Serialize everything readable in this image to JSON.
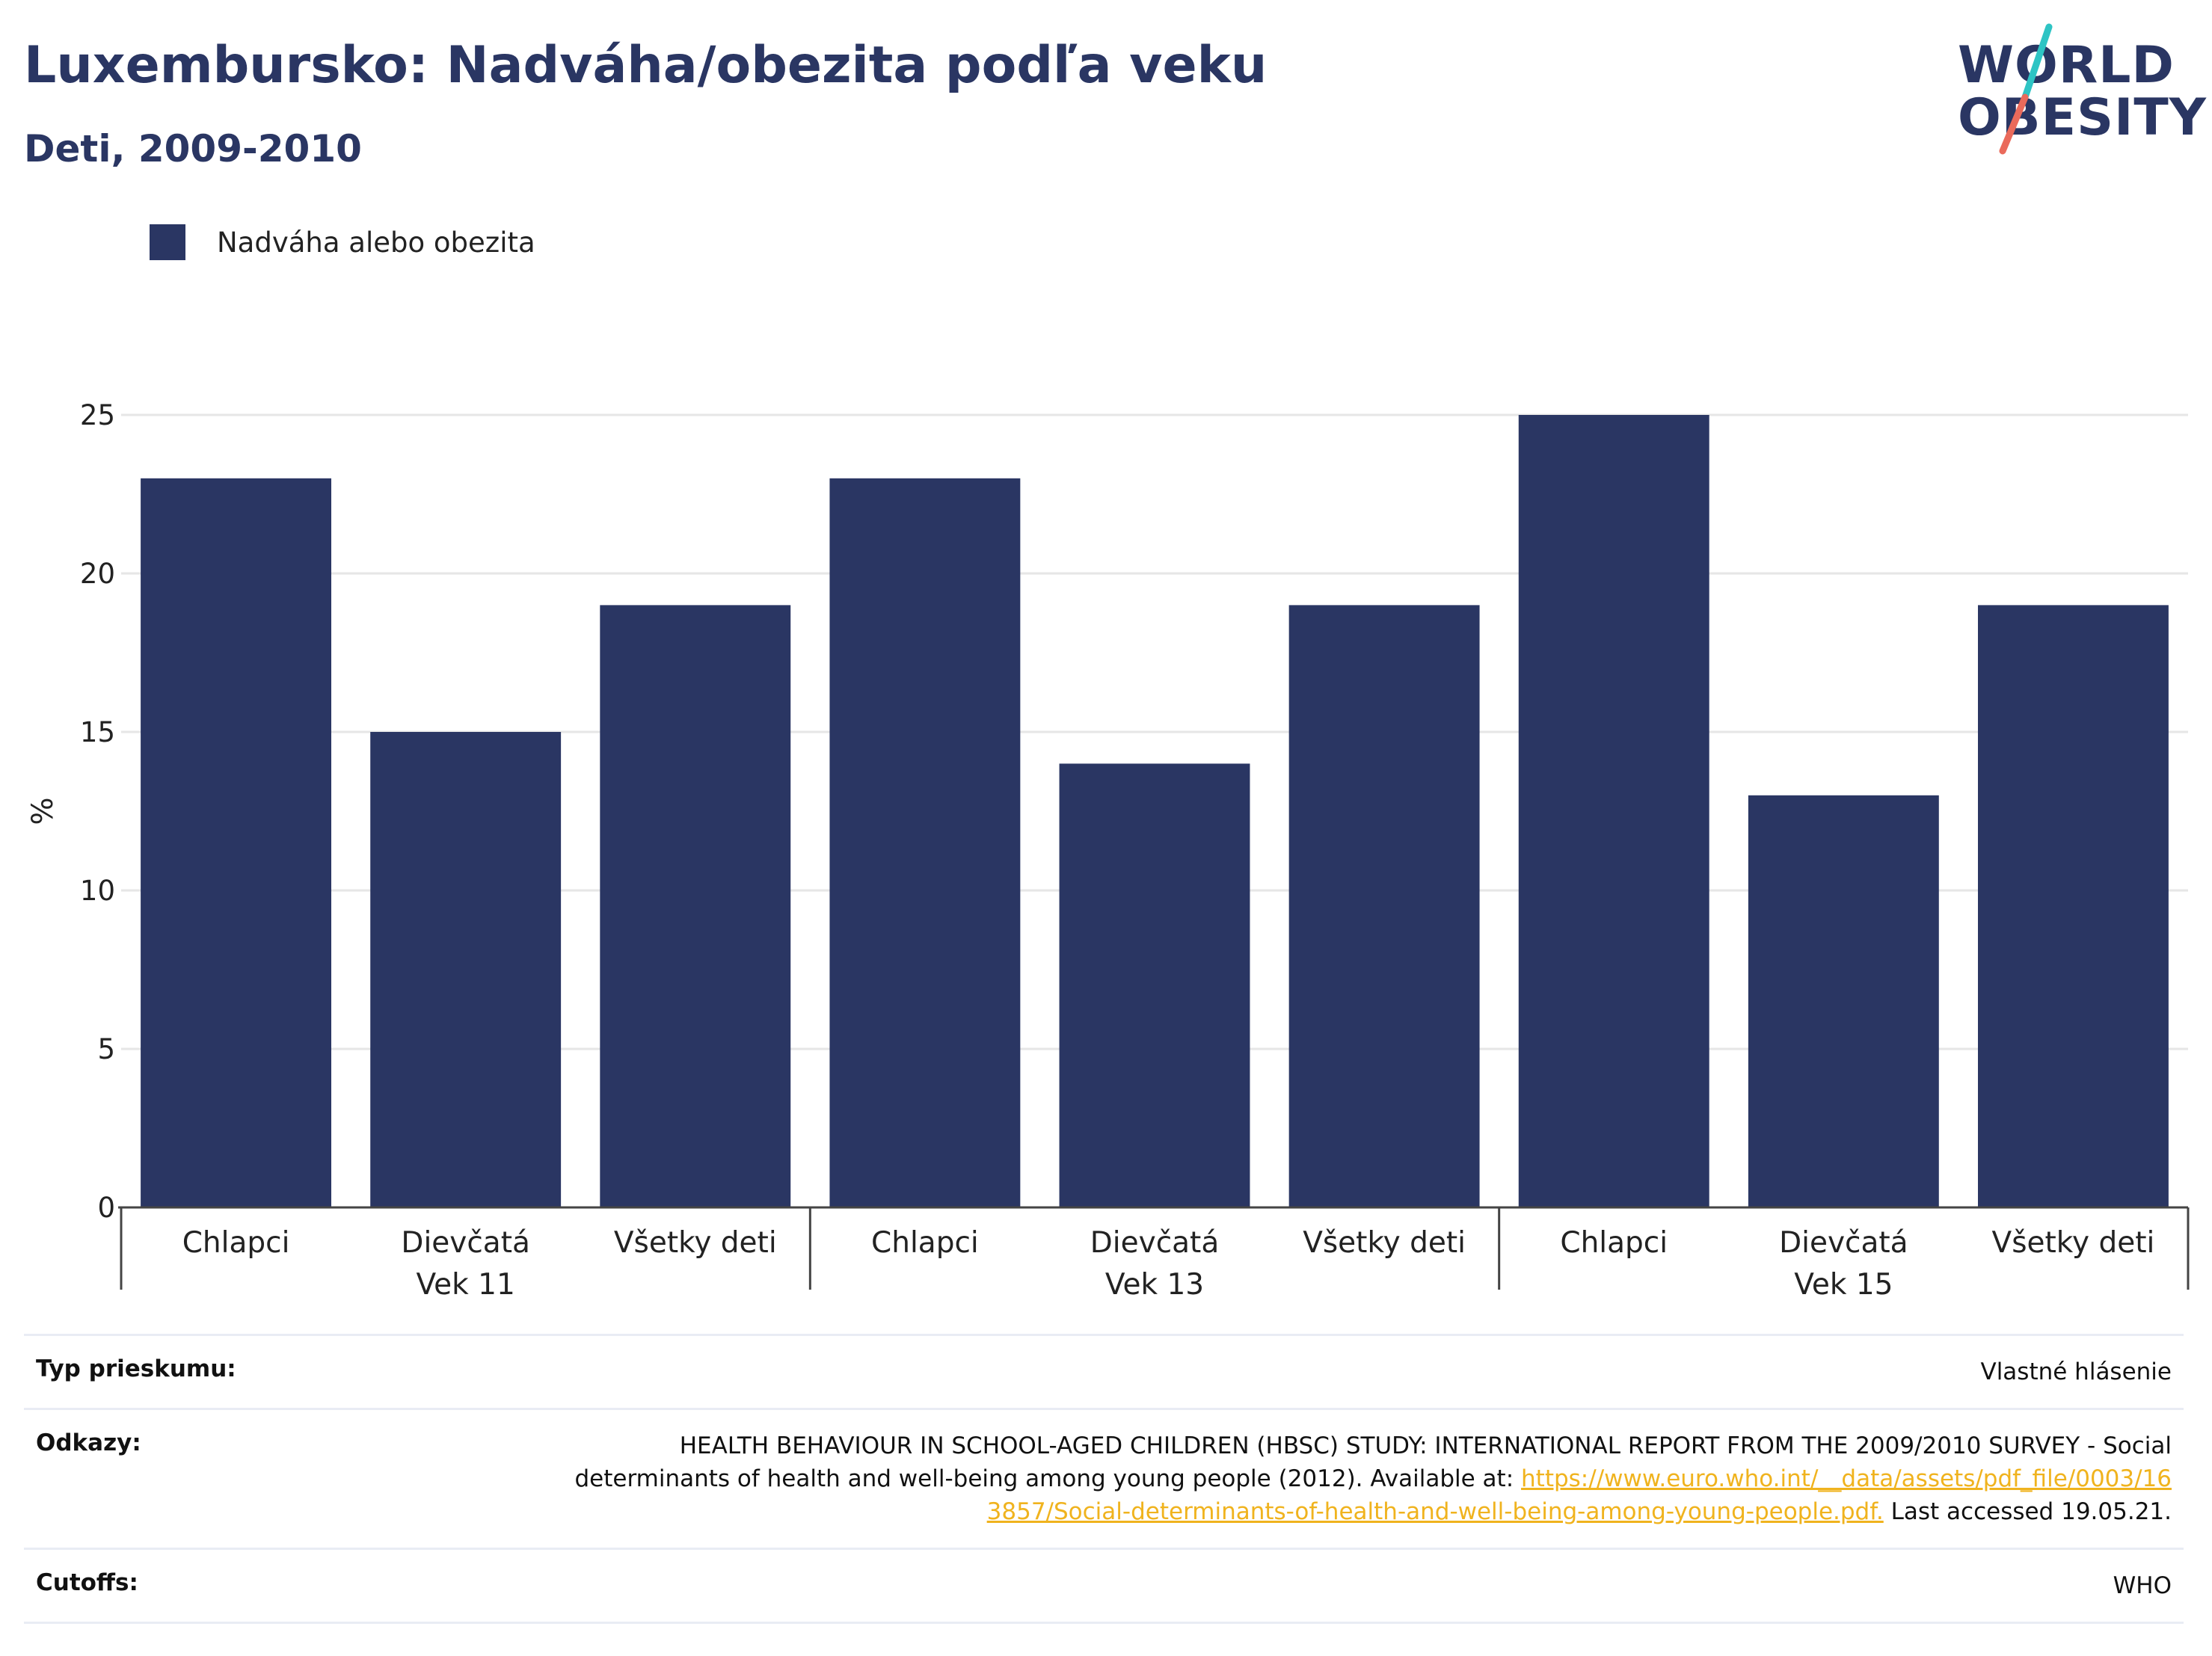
{
  "header": {
    "title": "Luxembursko: Nadváha/obezita podľa veku",
    "subtitle": "Deti, 2009-2010"
  },
  "logo": {
    "line1": "WORLD",
    "line2": "OBESITY",
    "colors": {
      "navy": "#2a3663",
      "teal": "#2ec4c4",
      "coral": "#ea6a5b"
    }
  },
  "legend": {
    "label": "Nadváha alebo obezita",
    "color": "#2a3663"
  },
  "chart_data": {
    "type": "bar",
    "ylabel": "%",
    "ylim": [
      0,
      25
    ],
    "yticks": [
      0,
      5,
      10,
      15,
      20,
      25
    ],
    "grid": true,
    "legend_position": "top-left",
    "bar_color": "#2a3663",
    "groups": [
      {
        "name": "Vek 11",
        "categories": [
          "Chlapci",
          "Dievčatá",
          "Všetky deti"
        ],
        "values": [
          23,
          15,
          19
        ]
      },
      {
        "name": "Vek 13",
        "categories": [
          "Chlapci",
          "Dievčatá",
          "Všetky deti"
        ],
        "values": [
          23,
          14,
          19
        ]
      },
      {
        "name": "Vek 15",
        "categories": [
          "Chlapci",
          "Dievčatá",
          "Všetky deti"
        ],
        "values": [
          25,
          13,
          19
        ]
      }
    ],
    "series": [
      {
        "name": "Nadváha alebo obezita",
        "values": [
          23,
          15,
          19,
          23,
          14,
          19,
          25,
          13,
          19
        ]
      }
    ]
  },
  "meta": {
    "survey_type_label": "Typ prieskumu:",
    "survey_type_value": "Vlastné hlásenie",
    "references_label": "Odkazy:",
    "references_text": "HEALTH BEHAVIOUR IN SCHOOL-AGED CHILDREN (HBSC) STUDY: INTERNATIONAL REPORT FROM THE 2009/2010 SURVEY - Social determinants of health and well-being among young people (2012). Available at:",
    "references_link": "https://www.euro.who.int/__data/assets/pdf_file/0003/163857/Social-determinants-of-health-and-well-being-among-young-people.pdf.",
    "references_suffix": " Last accessed 19.05.21.",
    "cutoffs_label": "Cutoffs:",
    "cutoffs_value": "WHO"
  }
}
